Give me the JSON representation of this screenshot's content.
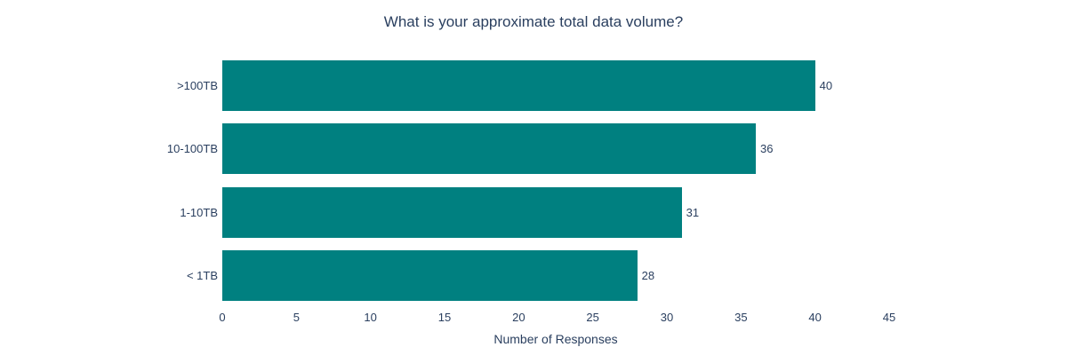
{
  "chart_data": {
    "type": "bar",
    "orientation": "horizontal",
    "title": "What is your approximate total data volume?",
    "xlabel": "Number of Responses",
    "ylabel": "",
    "categories": [
      ">100TB",
      "10-100TB",
      "1-10TB",
      "< 1TB"
    ],
    "values": [
      40,
      36,
      31,
      28
    ],
    "bar_labels": [
      "40",
      "36",
      "31",
      "28"
    ],
    "x_ticks": [
      0,
      5,
      10,
      15,
      20,
      25,
      30,
      35,
      40,
      45
    ],
    "xlim": [
      0,
      45
    ],
    "grid": false,
    "legend": false,
    "colors": {
      "bar": "#008080",
      "text": "#2a3f5f",
      "background": "#ffffff"
    }
  }
}
